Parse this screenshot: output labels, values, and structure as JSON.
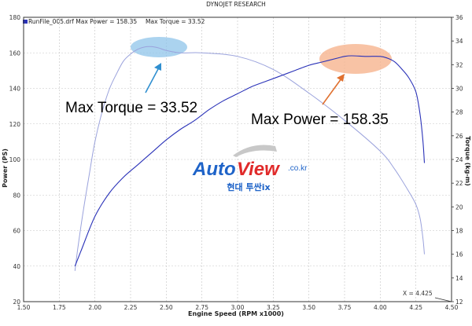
{
  "header": {
    "title": "DYNOJET RESEARCH",
    "run_label": "RunFile_005.drf Max Power = 158.35",
    "torque_label": "Max Torque = 33.52"
  },
  "annotations": {
    "max_torque": "Max Torque = 33.52",
    "max_power": "Max Power = 158.35",
    "cursor": "X = 4.425"
  },
  "watermark": {
    "brand_auto": "Auto",
    "brand_view": "View",
    "brand_domain": ".co.kr",
    "subtitle": "현대 투싼ix"
  },
  "colors": {
    "power_line": "#2a32b8",
    "torque_line": "#9aa2dc",
    "torque_highlight": "#8fc4ea",
    "power_highlight": "#f6b48e",
    "torque_arrow": "#2f8fd0",
    "power_arrow": "#e0702f",
    "brand_blue": "#1e63c8",
    "brand_red": "#e02a2a"
  },
  "chart_data": {
    "type": "line",
    "title": "DYNOJET RESEARCH",
    "xlabel": "Engine Speed (RPM x1000)",
    "ylabel": "Power (PS)",
    "y2label": "Torque (kg-m)",
    "xlim": [
      1.5,
      4.5
    ],
    "ylim": [
      20,
      180
    ],
    "y2lim": [
      12,
      36
    ],
    "x_ticks": [
      "1.50",
      "1.75",
      "2.00",
      "2.25",
      "2.50",
      "2.75",
      "3.00",
      "3.25",
      "3.50",
      "3.75",
      "4.00",
      "4.25",
      "4.50"
    ],
    "y_ticks": [
      "20",
      "40",
      "60",
      "80",
      "100",
      "120",
      "140",
      "160",
      "180"
    ],
    "y2_ticks": [
      "12",
      "14",
      "16",
      "18",
      "20",
      "22",
      "24",
      "26",
      "28",
      "30",
      "32",
      "34",
      "36"
    ],
    "grid": true,
    "series": [
      {
        "name": "Power",
        "axis": "left",
        "x": [
          1.86,
          1.9,
          2.0,
          2.1,
          2.2,
          2.3,
          2.4,
          2.5,
          2.6,
          2.7,
          2.8,
          2.9,
          3.0,
          3.1,
          3.2,
          3.3,
          3.4,
          3.5,
          3.6,
          3.7,
          3.75,
          3.8,
          3.9,
          4.0,
          4.05,
          4.1,
          4.15,
          4.2,
          4.25,
          4.28,
          4.3,
          4.31
        ],
        "y": [
          40,
          48,
          68,
          81,
          90,
          97,
          104,
          111,
          117,
          122,
          128,
          133,
          137,
          141,
          144,
          147,
          150,
          153,
          155,
          157,
          158,
          158.35,
          158,
          158,
          157,
          155,
          151,
          146,
          138,
          125,
          110,
          98
        ]
      },
      {
        "name": "Torque",
        "axis": "right",
        "x": [
          1.86,
          1.88,
          1.92,
          1.96,
          2.0,
          2.05,
          2.1,
          2.15,
          2.2,
          2.25,
          2.3,
          2.35,
          2.4,
          2.45,
          2.5,
          2.6,
          2.75,
          3.0,
          3.25,
          3.5,
          3.75,
          4.0,
          4.1,
          4.2,
          4.25,
          4.28,
          4.3,
          4.31
        ],
        "y": [
          14.6,
          16.5,
          19.8,
          22.7,
          25.5,
          28.0,
          29.9,
          31.2,
          32.3,
          32.9,
          33.3,
          33.5,
          33.52,
          33.4,
          33.2,
          33.0,
          33.0,
          32.7,
          31.6,
          29.6,
          27.3,
          24.7,
          23.2,
          21.3,
          20.2,
          19.0,
          17.3,
          16.0
        ]
      }
    ]
  }
}
